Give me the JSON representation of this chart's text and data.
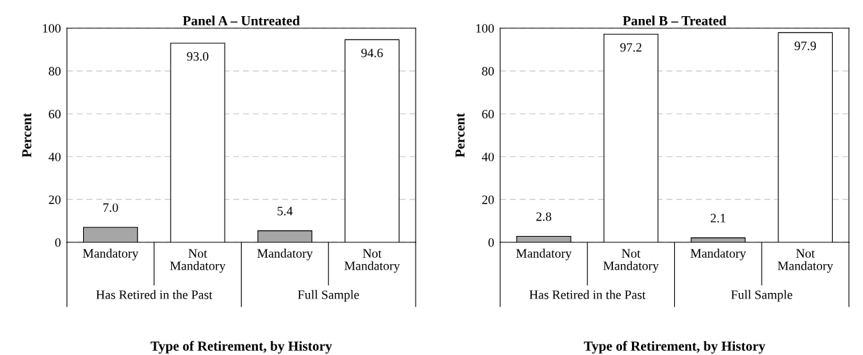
{
  "chart_data": [
    {
      "type": "bar",
      "title": "Panel A – Untreated",
      "xlabel": "Type of Retirement, by History",
      "ylabel": "Percent",
      "categories": [
        "Mandatory",
        "Not\nMandatory",
        "Mandatory",
        "Not\nMandatory"
      ],
      "values": [
        7.0,
        93.0,
        5.4,
        94.6
      ],
      "colors": [
        "#a6a6a6",
        "#ffffff",
        "#a6a6a6",
        "#ffffff"
      ],
      "value_labels": [
        "7.0",
        "93.0",
        "5.4",
        "94.6"
      ],
      "annotations": [
        "Has Retired in the Past",
        "Full Sample"
      ],
      "ylim": [
        0,
        100
      ],
      "yticks": [
        0,
        20,
        40,
        60,
        80,
        100
      ],
      "grid": "y"
    },
    {
      "type": "bar",
      "title": "Panel B – Treated",
      "xlabel": "Type of Retirement, by History",
      "ylabel": "Percent",
      "categories": [
        "Mandatory",
        "Not\nMandatory",
        "Mandatory",
        "Not\nMandatory"
      ],
      "values": [
        2.8,
        97.2,
        2.1,
        97.9
      ],
      "colors": [
        "#a6a6a6",
        "#ffffff",
        "#a6a6a6",
        "#ffffff"
      ],
      "value_labels": [
        "2.8",
        "97.2",
        "2.1",
        "97.9"
      ],
      "annotations": [
        "Has Retired in the Past",
        "Full Sample"
      ],
      "ylim": [
        0,
        100
      ],
      "yticks": [
        0,
        20,
        40,
        60,
        80,
        100
      ],
      "grid": "y"
    }
  ]
}
